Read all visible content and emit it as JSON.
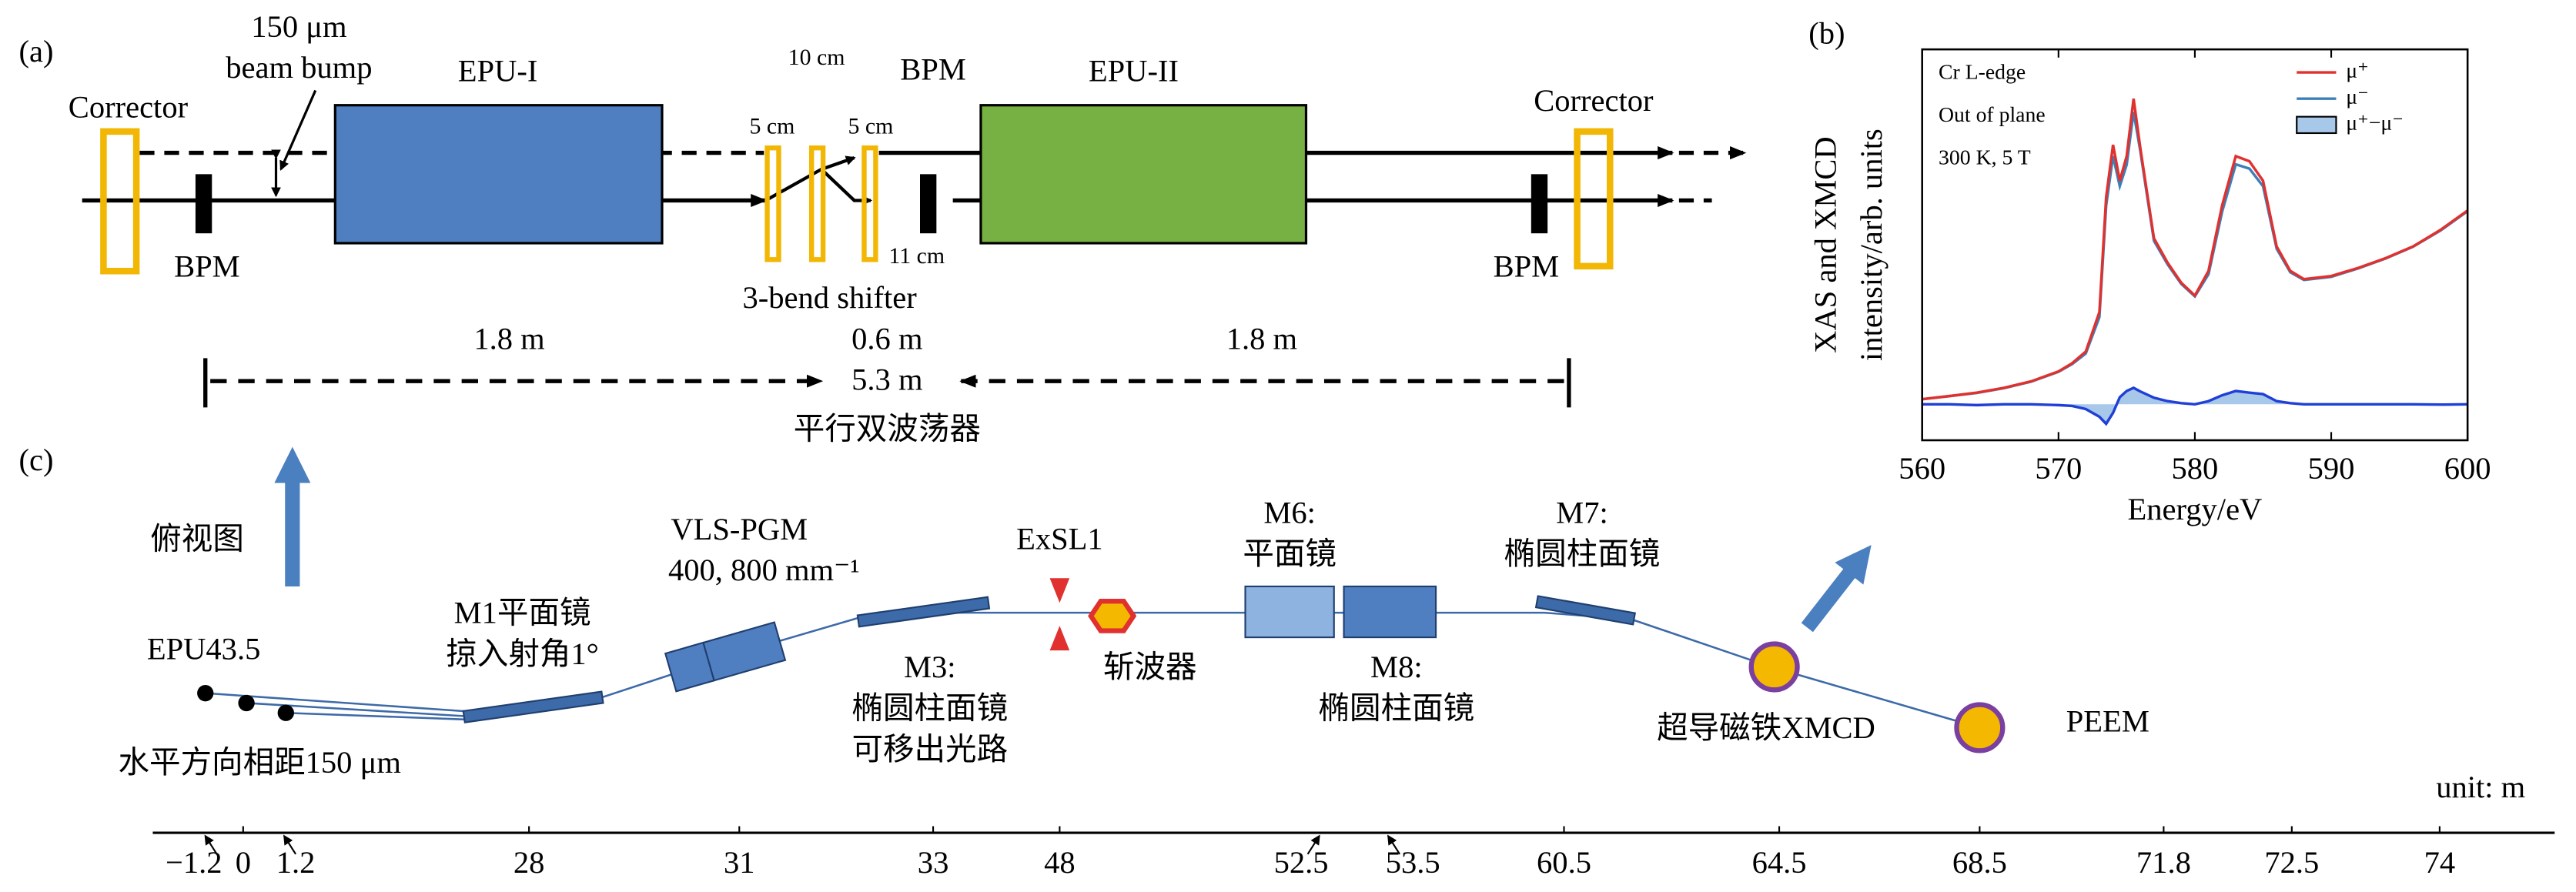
{
  "panel_a": {
    "label": "(a)",
    "bump": [
      "150 μm",
      "beam bump"
    ],
    "epu1": "EPU-I",
    "epu2": "EPU-II",
    "corrector_left": "Corrector",
    "corrector_right": "Corrector",
    "bpm_left": "BPM",
    "bpm_mid": "BPM",
    "bpm_right": "BPM",
    "shifter_spacings": [
      "10 cm",
      "5 cm",
      "5 cm"
    ],
    "bpm_offset": "11 cm",
    "shifter": "3-bend shifter",
    "lengths": [
      "1.8 m",
      "0.6 m",
      "1.8 m"
    ],
    "total": "5.3 m",
    "caption": "平行双波荡器"
  },
  "chart_data": {
    "type": "line",
    "label": "(b)",
    "annotations": [
      "Cr L-edge",
      "Out of plane",
      "300 K, 5 T"
    ],
    "xlabel": "Energy/eV",
    "ylabel": [
      "XAS and XMCD",
      "intensity/arb. units"
    ],
    "x": [
      560,
      562,
      564,
      566,
      568,
      570,
      571,
      572,
      573,
      573.5,
      574,
      574.5,
      575,
      575.5,
      576,
      577,
      578,
      579,
      580,
      581,
      582,
      583,
      584,
      585,
      586,
      587,
      588,
      590,
      592,
      594,
      596,
      598,
      600
    ],
    "series": [
      {
        "name": "μ⁺",
        "color": "#e0312f",
        "values": [
          1.05,
          1.13,
          1.22,
          1.34,
          1.51,
          1.76,
          1.97,
          2.27,
          3.28,
          6.22,
          7.56,
          6.64,
          7.27,
          8.74,
          7.48,
          5.17,
          4.54,
          4.03,
          3.7,
          4.33,
          6.01,
          7.27,
          7.14,
          6.64,
          4.96,
          4.33,
          4.12,
          4.2,
          4.41,
          4.66,
          4.96,
          5.38,
          5.88
        ]
      },
      {
        "name": "μ⁻",
        "color": "#3d7fb8",
        "values": [
          1.05,
          1.13,
          1.21,
          1.33,
          1.5,
          1.75,
          1.95,
          2.22,
          3.15,
          6.0,
          7.27,
          6.5,
          7.05,
          8.4,
          7.4,
          5.1,
          4.5,
          4.0,
          3.68,
          4.25,
          5.85,
          7.06,
          6.95,
          6.5,
          4.9,
          4.3,
          4.1,
          4.18,
          4.4,
          4.65,
          4.95,
          5.36,
          5.86
        ]
      },
      {
        "name": "μ⁺−μ⁻",
        "color": "#1f3fd6",
        "fill": "#a8c8ea",
        "values": [
          0.92,
          0.92,
          0.9,
          0.92,
          0.92,
          0.9,
          0.88,
          0.8,
          0.6,
          0.42,
          0.7,
          1.1,
          1.26,
          1.34,
          1.25,
          1.09,
          1.0,
          0.95,
          0.92,
          1.0,
          1.15,
          1.26,
          1.22,
          1.18,
          1.0,
          0.95,
          0.92,
          0.92,
          0.92,
          0.92,
          0.92,
          0.91,
          0.92
        ]
      }
    ],
    "xlim": [
      560,
      600
    ],
    "xticks": [
      560,
      570,
      580,
      590,
      600
    ],
    "ylim": [
      0,
      10
    ],
    "legend": "upper right"
  },
  "panel_c": {
    "label": "(c)",
    "top_view": "俯视图",
    "source": "EPU43.5",
    "separation": "水平方向相距150 μm",
    "m1": [
      "M1平面镜",
      "掠入射角1°"
    ],
    "pgm": [
      "VLS-PGM",
      "400, 800 mm⁻¹"
    ],
    "m3": [
      "M3:",
      "椭圆柱面镜",
      "可移出光路"
    ],
    "slit": "ExSL1",
    "chopper": "斩波器",
    "m6": [
      "M6:",
      "平面镜"
    ],
    "m8": [
      "M8:",
      "椭圆柱面镜"
    ],
    "m7": [
      "M7:",
      "椭圆柱面镜"
    ],
    "xmcd": "超导磁铁XMCD",
    "peem": "PEEM",
    "unit": "unit: m",
    "positions": [
      {
        "label": "−1.2",
        "color": "#000000"
      },
      {
        "label": "0",
        "color": "#000000"
      },
      {
        "label": "1.2",
        "color": "#000000"
      },
      {
        "label": "28",
        "color": "#000000"
      },
      {
        "label": "31",
        "color": "#000000"
      },
      {
        "label": "33",
        "color": "#000000"
      },
      {
        "label": "48",
        "color": "#000000"
      },
      {
        "label": "52.5",
        "color": "#000000"
      },
      {
        "label": "53.5",
        "color": "#000000"
      },
      {
        "label": "60.5",
        "color": "#000000"
      },
      {
        "label": "64.5",
        "color": "#e0312f"
      },
      {
        "label": "68.5",
        "color": "#e0312f"
      },
      {
        "label": "71.8",
        "color": "#000000"
      },
      {
        "label": "72.5",
        "color": "#000000"
      },
      {
        "label": "74",
        "color": "#e0312f"
      }
    ]
  }
}
